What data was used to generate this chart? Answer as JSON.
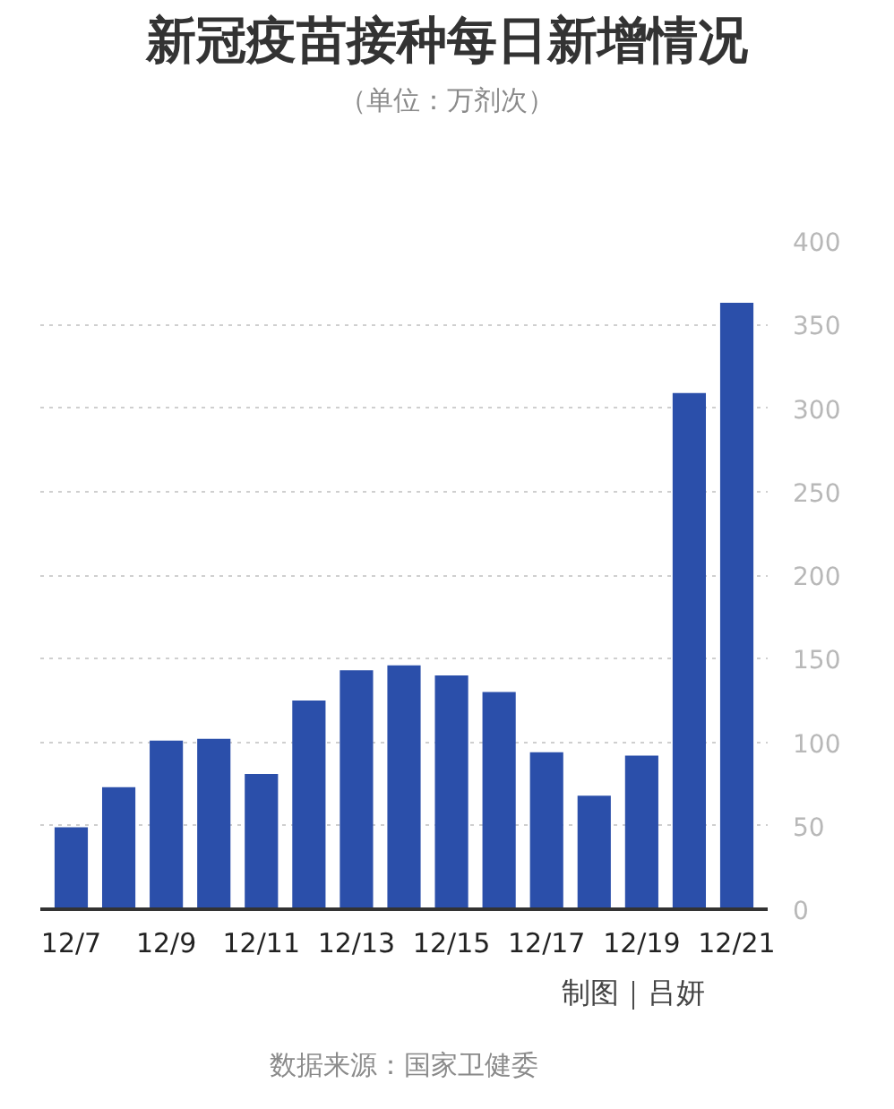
{
  "chart_data": {
    "type": "bar",
    "title": "新冠疫苗接种每日新增情况",
    "subtitle": "（单位：万剂次）",
    "categories": [
      "12/7",
      null,
      "12/9",
      null,
      "12/11",
      null,
      "12/13",
      null,
      "12/15",
      null,
      "12/17",
      null,
      "12/19",
      null,
      "12/21"
    ],
    "values": [
      49,
      73,
      101,
      102,
      81,
      125,
      143,
      146,
      140,
      130,
      94,
      68,
      92,
      309,
      363
    ],
    "color": "#2b4faa",
    "ylim": [
      0,
      400
    ],
    "yticks": [
      0,
      50,
      100,
      150,
      200,
      250,
      300,
      350,
      400
    ],
    "grid": "y",
    "annotations": [
      "制图｜吕妍",
      "数据来源：国家卫健委"
    ]
  }
}
